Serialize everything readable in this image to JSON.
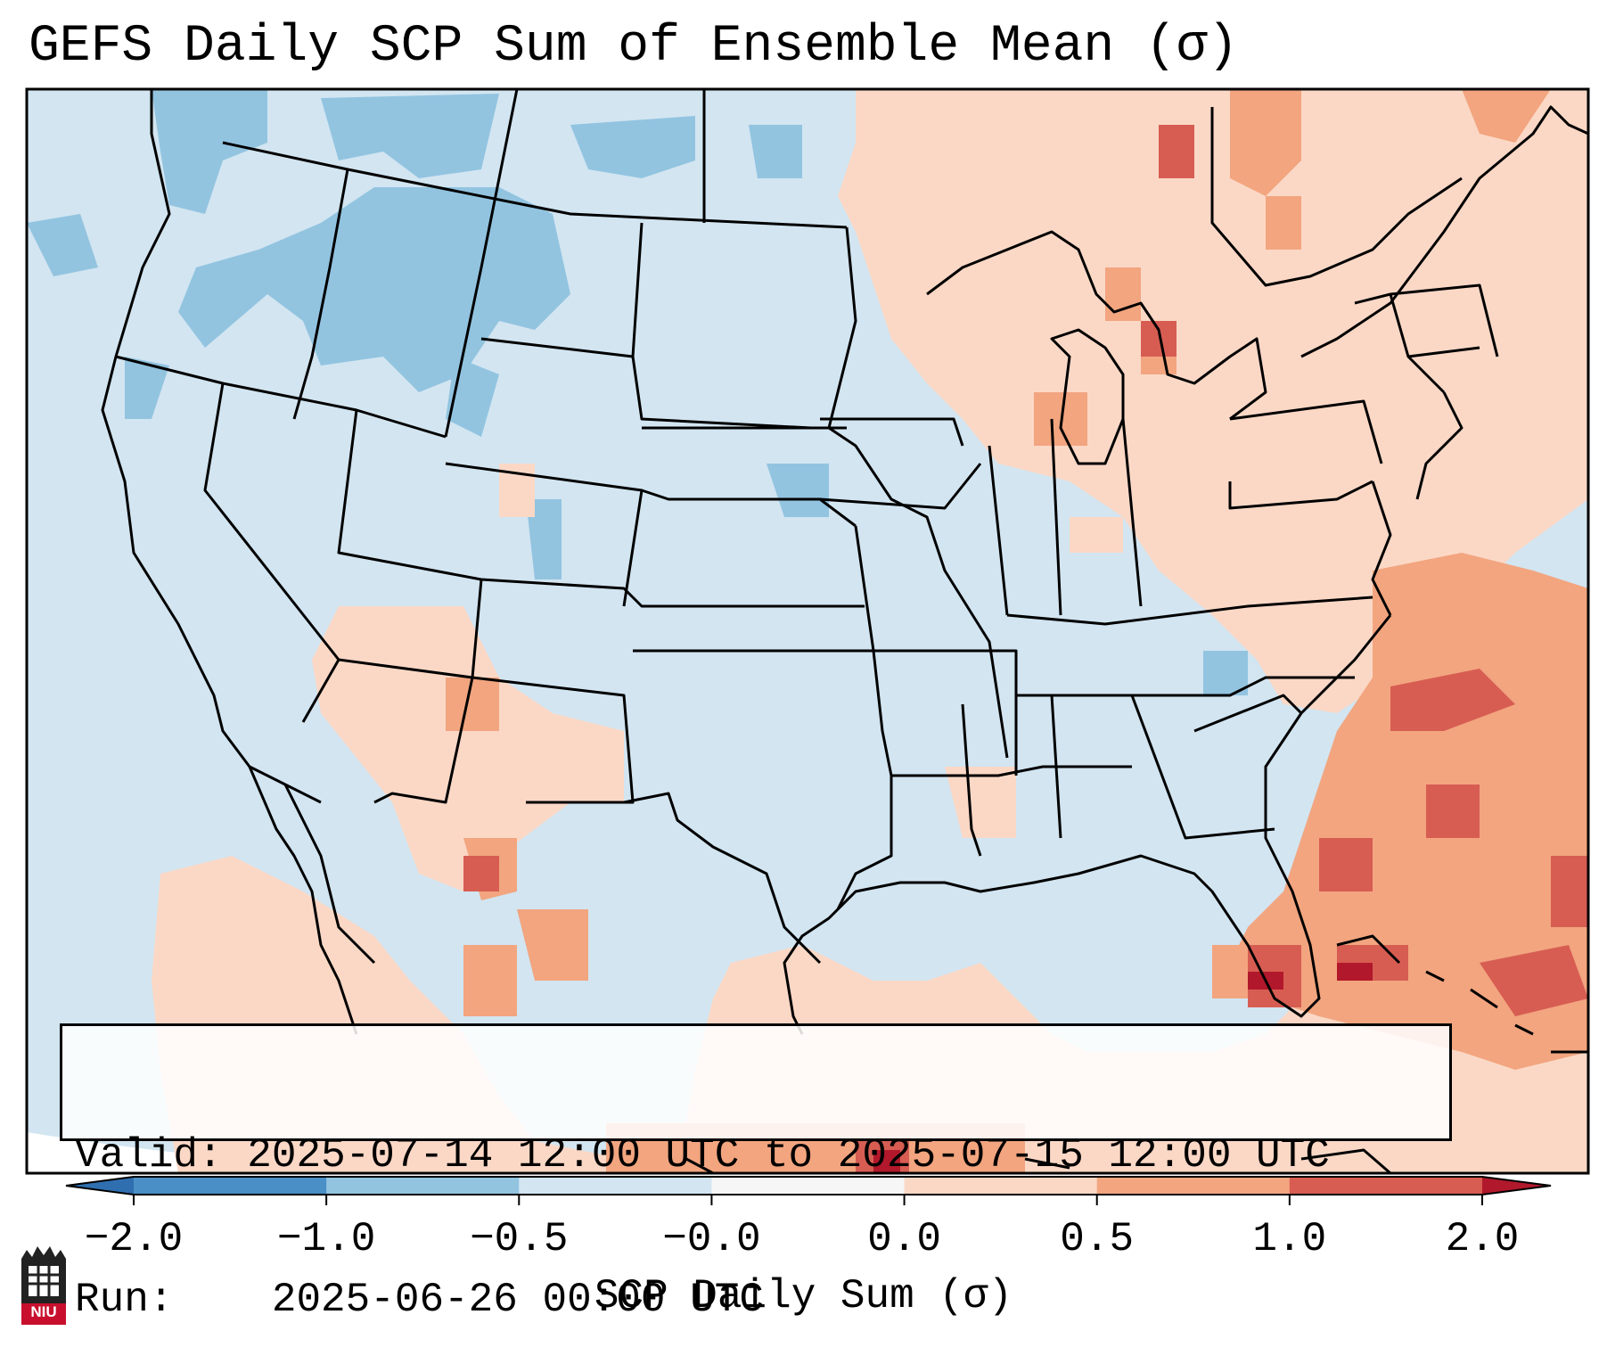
{
  "title": "GEFS Daily SCP Sum of Ensemble Mean (σ)",
  "info": {
    "valid_label": "Valid:",
    "valid_value": "2025-07-14 12:00 UTC to 2025-07-15 12:00 UTC",
    "run_label": "Run:",
    "run_value": "2025-06-26 00:00 UTC"
  },
  "colorbar": {
    "label": "SCP Daily Sum (σ)",
    "ticks": [
      "−2.0",
      "−1.0",
      "−0.5",
      "−0.0",
      "0.0",
      "0.5",
      "1.0",
      "2.0"
    ],
    "bins": [
      {
        "from": -2.0,
        "to": -1.0,
        "color": "#4a8fc6"
      },
      {
        "from": -1.0,
        "to": -0.5,
        "color": "#92c4e0"
      },
      {
        "from": -0.5,
        "to": -0.0,
        "color": "#d2e5f1"
      },
      {
        "from": -0.0,
        "to": 0.0,
        "color": "#f6f6f6"
      },
      {
        "from": 0.0,
        "to": 0.5,
        "color": "#fbd8c6"
      },
      {
        "from": 0.5,
        "to": 1.0,
        "color": "#f2a57f"
      },
      {
        "from": 1.0,
        "to": 2.0,
        "color": "#d75d53"
      }
    ],
    "under_color": "#2f6fb0",
    "over_color": "#b2182b"
  },
  "colors": {
    "background_field": "#d2e5f1",
    "weak_neg": "#92c4e0",
    "weak_pos": "#fbd8c6",
    "mod_pos": "#f2a57f",
    "strong_pos": "#d75d53",
    "extreme_pos": "#b2182b"
  },
  "logo": {
    "text": "NIU",
    "icon": "niu-tower-icon"
  }
}
